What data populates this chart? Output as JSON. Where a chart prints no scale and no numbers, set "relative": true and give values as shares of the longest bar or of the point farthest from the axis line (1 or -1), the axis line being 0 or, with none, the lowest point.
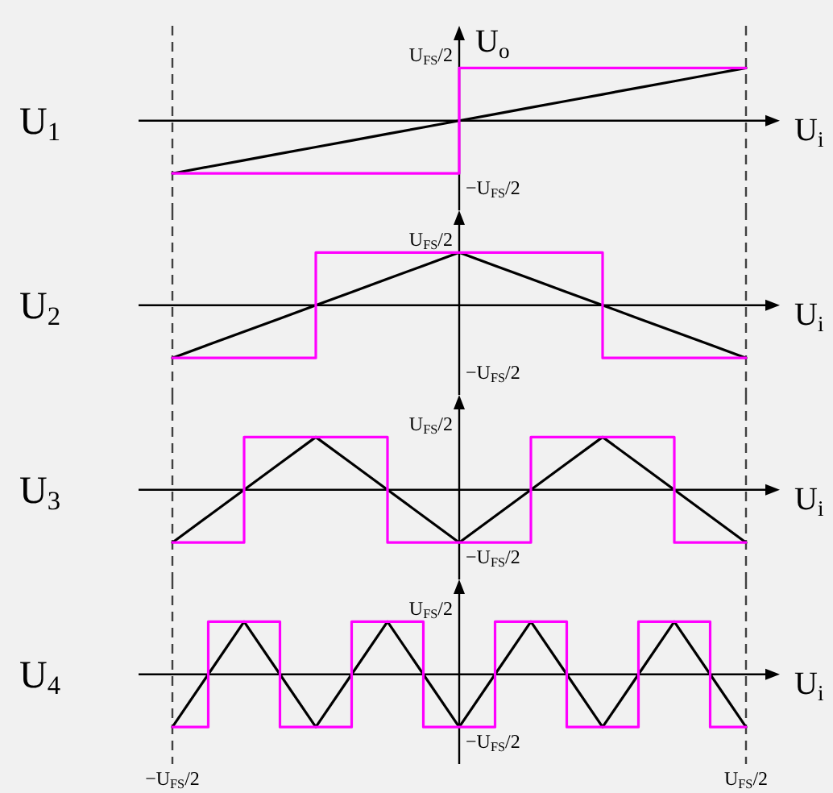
{
  "chart_data": [
    {
      "type": "line",
      "title": "U$_{1}$",
      "xlabel": "U$_{i}$",
      "ylabel": "U$_{o}$",
      "relative": true,
      "tick_labels": false,
      "categories": [
        "−U$_{FS}$/2",
        null,
        null,
        null,
        null,
        null,
        null,
        null,
        null,
        null,
        null,
        null,
        null,
        null,
        null,
        null,
        "U$_{FS}$/2"
      ],
      "series": [
        {
          "color": "#000000",
          "values": [
            -1,
            -0.875,
            -0.75,
            -0.625,
            -0.5,
            -0.375,
            -0.25,
            -0.125,
            0,
            0.125,
            0.25,
            0.375,
            0.5,
            0.625,
            0.75,
            0.875,
            1
          ]
        },
        {
          "type": "step",
          "color": "#ff00ff",
          "values": [
            -1,
            -1,
            -1,
            -1,
            -1,
            -1,
            -1,
            -1,
            1,
            1,
            1,
            1,
            1,
            1,
            1,
            1,
            1
          ]
        }
      ],
      "annotations": [
        "U$_{FS}$/2",
        "−U$_{FS}$/2"
      ],
      "ref_lines": [
        {
          "axis": "x",
          "value": "−U$_{FS}$/2",
          "color": "#404040",
          "line_style": "dashed"
        },
        {
          "axis": "x",
          "value": "U$_{FS}$/2",
          "color": "#404040",
          "line_style": "dashed"
        }
      ]
    },
    {
      "type": "line",
      "title": "U$_{2}$",
      "xlabel": "U$_{i}$",
      "relative": true,
      "tick_labels": false,
      "categories": [
        "−U$_{FS}$/2",
        null,
        null,
        null,
        null,
        null,
        null,
        null,
        null,
        null,
        null,
        null,
        null,
        null,
        null,
        null,
        "U$_{FS}$/2"
      ],
      "series": [
        {
          "color": "#000000",
          "values": [
            -1,
            -0.75,
            -0.5,
            -0.25,
            0,
            0.25,
            0.5,
            0.75,
            1,
            0.75,
            0.5,
            0.25,
            0,
            -0.25,
            -0.5,
            -0.75,
            -1
          ]
        },
        {
          "type": "step",
          "color": "#ff00ff",
          "values": [
            -1,
            -1,
            -1,
            -1,
            1,
            1,
            1,
            1,
            1,
            1,
            1,
            1,
            -1,
            -1,
            -1,
            -1,
            -1
          ]
        }
      ],
      "annotations": [
        "U$_{FS}$/2",
        "−U$_{FS}$/2"
      ],
      "ref_lines": [
        {
          "axis": "x",
          "value": "−U$_{FS}$/2",
          "color": "#404040",
          "line_style": "dashed"
        },
        {
          "axis": "x",
          "value": "U$_{FS}$/2",
          "color": "#404040",
          "line_style": "dashed"
        }
      ]
    },
    {
      "type": "line",
      "title": "U$_{3}$",
      "xlabel": "U$_{i}$",
      "relative": true,
      "tick_labels": false,
      "categories": [
        "−U$_{FS}$/2",
        null,
        null,
        null,
        null,
        null,
        null,
        null,
        null,
        null,
        null,
        null,
        null,
        null,
        null,
        null,
        "U$_{FS}$/2"
      ],
      "series": [
        {
          "color": "#000000",
          "values": [
            -1,
            -0.5,
            0,
            0.5,
            1,
            0.5,
            0,
            -0.5,
            -1,
            -0.5,
            0,
            0.5,
            1,
            0.5,
            0,
            -0.5,
            -1
          ]
        },
        {
          "type": "step",
          "color": "#ff00ff",
          "values": [
            -1,
            -1,
            1,
            1,
            1,
            1,
            -1,
            -1,
            -1,
            -1,
            1,
            1,
            1,
            1,
            -1,
            -1,
            -1
          ]
        }
      ],
      "annotations": [
        "U$_{FS}$/2",
        "−U$_{FS}$/2"
      ],
      "ref_lines": [
        {
          "axis": "x",
          "value": "−U$_{FS}$/2",
          "color": "#404040",
          "line_style": "dashed"
        },
        {
          "axis": "x",
          "value": "U$_{FS}$/2",
          "color": "#404040",
          "line_style": "dashed"
        }
      ]
    },
    {
      "type": "line",
      "title": "U$_{4}$",
      "xlabel": "U$_{i}$",
      "relative": true,
      "tick_labels": "x",
      "categories": [
        "−U$_{FS}$/2",
        null,
        null,
        null,
        null,
        null,
        null,
        null,
        null,
        null,
        null,
        null,
        null,
        null,
        null,
        null,
        "U$_{FS}$/2"
      ],
      "series": [
        {
          "color": "#000000",
          "values": [
            -1,
            0,
            1,
            0,
            -1,
            0,
            1,
            0,
            -1,
            0,
            1,
            0,
            -1,
            0,
            1,
            0,
            -1
          ]
        },
        {
          "type": "step",
          "color": "#ff00ff",
          "values": [
            -1,
            1,
            1,
            -1,
            -1,
            1,
            1,
            -1,
            -1,
            1,
            1,
            -1,
            -1,
            1,
            1,
            -1,
            -1
          ]
        }
      ],
      "annotations": [
        "U$_{FS}$/2",
        "−U$_{FS}$/2"
      ],
      "ref_lines": [
        {
          "axis": "x",
          "value": "−U$_{FS}$/2",
          "color": "#404040",
          "line_style": "dashed"
        },
        {
          "axis": "x",
          "value": "U$_{FS}$/2",
          "color": "#404040",
          "line_style": "dashed"
        }
      ]
    }
  ]
}
